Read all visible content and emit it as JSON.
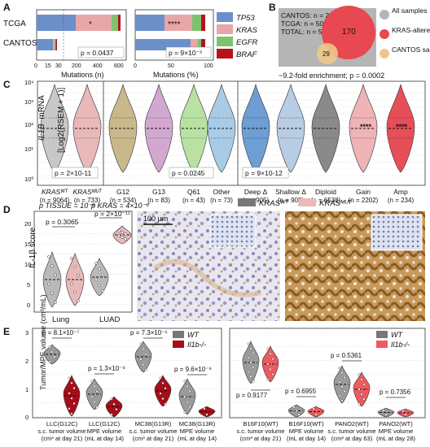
{
  "panels": {
    "A": "A",
    "B": "B",
    "C": "C",
    "D": "D",
    "E": "E"
  },
  "panel_a": {
    "rows": [
      "TCGA",
      "CANTOS"
    ],
    "xlabel_left": "Mutations (n)",
    "xlabel_right": "Mutations (%)",
    "ticks_left": [
      "0",
      "15",
      "30",
      "200",
      "400",
      "600"
    ],
    "ticks_right": [
      "0",
      "50",
      "100"
    ],
    "star_left": "*",
    "star_right": "****",
    "p_left": "p = 0.0437",
    "p_right": "p = 9×10⁻⁵",
    "legend": [
      {
        "label": "TP53",
        "color": "#6b8fc9"
      },
      {
        "label": "KRAS",
        "color": "#e8a6a8"
      },
      {
        "label": "EGFR",
        "color": "#7dc36e"
      },
      {
        "label": "BRAF",
        "color": "#b5121b"
      }
    ]
  },
  "panel_b": {
    "lines": [
      "CANTOS: n = 29",
      "TCGA: n = 507",
      "TOTAL: n = 536"
    ],
    "big_value": "170",
    "small_value": "29",
    "legend": [
      "All samples",
      "KRAS-altered samples",
      "CANTOS samples"
    ],
    "caption": "~9.2-fold enrichment; p = 0.0002"
  },
  "panel_c": {
    "ylabel_gene": "IL1B",
    "ylabel_rest": "mRNA",
    "ylabel_2": "[Log2(RSEM + 1)]",
    "yticks": [
      "10⁰",
      "10¹",
      "10²",
      "10³",
      "10⁴"
    ],
    "groups": [
      {
        "label": "KRASᵂᵀ",
        "n": "(n = 9064)",
        "color": "#c8c8c8"
      },
      {
        "label": "KRASᴹᵁᵀ",
        "n": "(n = 733)",
        "color": "#e9b9ba"
      },
      {
        "label": "G12",
        "n": "(n = 534)",
        "color": "#c8b88a"
      },
      {
        "label": "G13",
        "n": "(n = 83)",
        "color": "#d2a8d0"
      },
      {
        "label": "Q61",
        "n": "(n = 43)",
        "color": "#b9e1a3"
      },
      {
        "label": "Other",
        "n": "(n = 73)",
        "color": "#a9cbe6"
      },
      {
        "label": "Deep Δ",
        "n": "(n = 905)",
        "color": "#6e9ed3"
      },
      {
        "label": "Shallow Δ",
        "n": "(n = 905)",
        "color": "#b8cce4"
      },
      {
        "label": "Diploid",
        "n": "(n = 6538)",
        "color": "#8a8a8a"
      },
      {
        "label": "Gain",
        "n": "(n = 2202)",
        "color": "#efb4b6"
      },
      {
        "label": "Amp",
        "n": "(n = 234)",
        "color": "#e84e57"
      }
    ],
    "p1": "p = 2×10-11",
    "p2": "p = 0.0245",
    "p3": "p = 9×10-12",
    "star_gain": "****",
    "star_amp": "****"
  },
  "panel_d": {
    "p_tissue": "p TISSUE = 10⁻⁹",
    "p_kras": "p KRAS = 4×10⁻⁸",
    "ylabel": "IL-1β score",
    "yticks": [
      "0",
      "5",
      "10",
      "15",
      "20"
    ],
    "xlabels": [
      "Lung",
      "LUAD"
    ],
    "p_lung": "p = 0.3065",
    "p_luad": "p = 2×10⁻¹¹",
    "legend": [
      "KRASᵂᵀ",
      "KRASᴹᵁᵀ"
    ],
    "scale_bar": "100 μm"
  },
  "panel_e": {
    "ylabel": "Tumor/MPE volume (cm³/mL)",
    "yticks": [
      "0",
      "1",
      "2",
      "3"
    ],
    "legend_left": [
      "WT",
      "Il1b-/-"
    ],
    "legend_right": [
      "WT",
      "Il1b-/-"
    ],
    "p_values_left": [
      "p = 8.1×10⁻⁷",
      "p = 1.3×10⁻⁸",
      "p = 7.3×10⁻⁵",
      "p = 9.6×10⁻⁸"
    ],
    "p_values_right": [
      "p = 0.9177",
      "p = 0.6955",
      "p = 0.5361",
      "p = 0.7356"
    ],
    "groups_left": [
      [
        "LLC(G12C)",
        "s.c. tumor volume",
        "(cm³ at day 21)"
      ],
      [
        "LLC(G12C)",
        "MPE volume",
        "(mL at day 14)"
      ],
      [
        "MC38(G13R)",
        "s.c. tumor volume",
        "(cm³ at day 21)"
      ],
      [
        "MC38(G13R)",
        "MPE volume",
        "(mL at day 14)"
      ]
    ],
    "groups_right": [
      [
        "B16F10(WT)",
        "s.c. tumor volume",
        "(cm³ at day 21)"
      ],
      [
        "B16F10(WT)",
        "MPE volume",
        "(mL at day 14)"
      ],
      [
        "PANO2(WT)",
        "s.c. tumor volume",
        "(cm³ at day 63)"
      ],
      [
        "PANO2(WT)",
        "MPE volume",
        "(mL at day 28)"
      ]
    ]
  }
}
